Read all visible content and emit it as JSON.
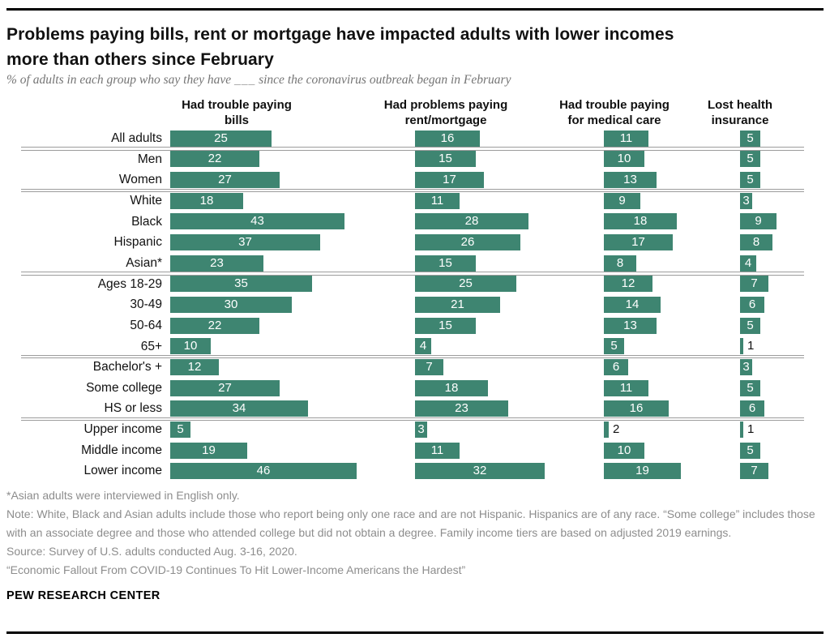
{
  "header": {
    "title": "Problems paying bills, rent or mortgage have impacted adults with lower incomes more than others since February",
    "title_lines": [
      "Problems paying bills, rent or mortgage have impacted adults with lower incomes",
      "more than others since February"
    ],
    "subtitle_prefix": "% of adults in each group who say they have",
    "subtitle_blank": "___",
    "subtitle_suffix": "since the coronavirus outbreak began in February"
  },
  "chart_data": {
    "type": "bar",
    "orientation": "horizontal",
    "unit": "%",
    "xlim": [
      0,
      50
    ],
    "grid": false,
    "bar_color": "#3e8571",
    "value_label_inside_color": "#ffffff",
    "value_label_outside_color": "#111111",
    "columns": [
      {
        "label": "Had trouble paying bills",
        "lines": [
          "Had trouble paying",
          "bills"
        ]
      },
      {
        "label": "Had problems paying rent/mortgage",
        "lines": [
          "Had problems paying",
          "rent/mortgage"
        ]
      },
      {
        "label": "Had trouble paying for medical care",
        "lines": [
          "Had trouble paying",
          "for medical care"
        ]
      },
      {
        "label": "Lost health insurance",
        "lines": [
          "Lost health",
          "insurance"
        ]
      }
    ],
    "categories": [
      "All adults",
      "Men",
      "Women",
      "White",
      "Black",
      "Hispanic",
      "Asian*",
      "Ages 18-29",
      "30-49",
      "50-64",
      "65+",
      "Bachelor's +",
      "Some college",
      "HS or less",
      "Upper income",
      "Middle income",
      "Lower income"
    ],
    "group_separators_after": [
      "All adults",
      "Women",
      "Asian*",
      "65+",
      "HS or less"
    ],
    "series": [
      {
        "name": "Had trouble paying bills",
        "values": [
          25,
          22,
          27,
          18,
          43,
          37,
          23,
          35,
          30,
          22,
          10,
          12,
          27,
          34,
          5,
          19,
          46
        ]
      },
      {
        "name": "Had problems paying rent/mortgage",
        "values": [
          16,
          15,
          17,
          11,
          28,
          26,
          15,
          25,
          21,
          15,
          4,
          7,
          18,
          23,
          3,
          11,
          32
        ]
      },
      {
        "name": "Had trouble paying for medical care",
        "values": [
          11,
          10,
          13,
          9,
          18,
          17,
          8,
          12,
          14,
          13,
          5,
          6,
          11,
          16,
          2,
          10,
          19
        ]
      },
      {
        "name": "Lost health insurance",
        "values": [
          5,
          5,
          5,
          3,
          9,
          8,
          4,
          7,
          6,
          5,
          1,
          3,
          5,
          6,
          1,
          5,
          7
        ]
      }
    ]
  },
  "footer": {
    "footnote_asterisk": "*Asian adults were interviewed in English only.",
    "note": "Note: White, Black and Asian adults include those who report being only one race and are not Hispanic. Hispanics are of any race. “Some college” includes those with an associate degree and those who attended college but did not obtain a degree. Family income tiers are based on adjusted 2019 earnings.",
    "source": "Source: Survey of U.S. adults conducted Aug. 3-16, 2020.",
    "report_title": "“Economic Fallout From COVID-19 Continues To Hit Lower-Income Americans the Hardest”",
    "brand": "PEW RESEARCH CENTER"
  }
}
